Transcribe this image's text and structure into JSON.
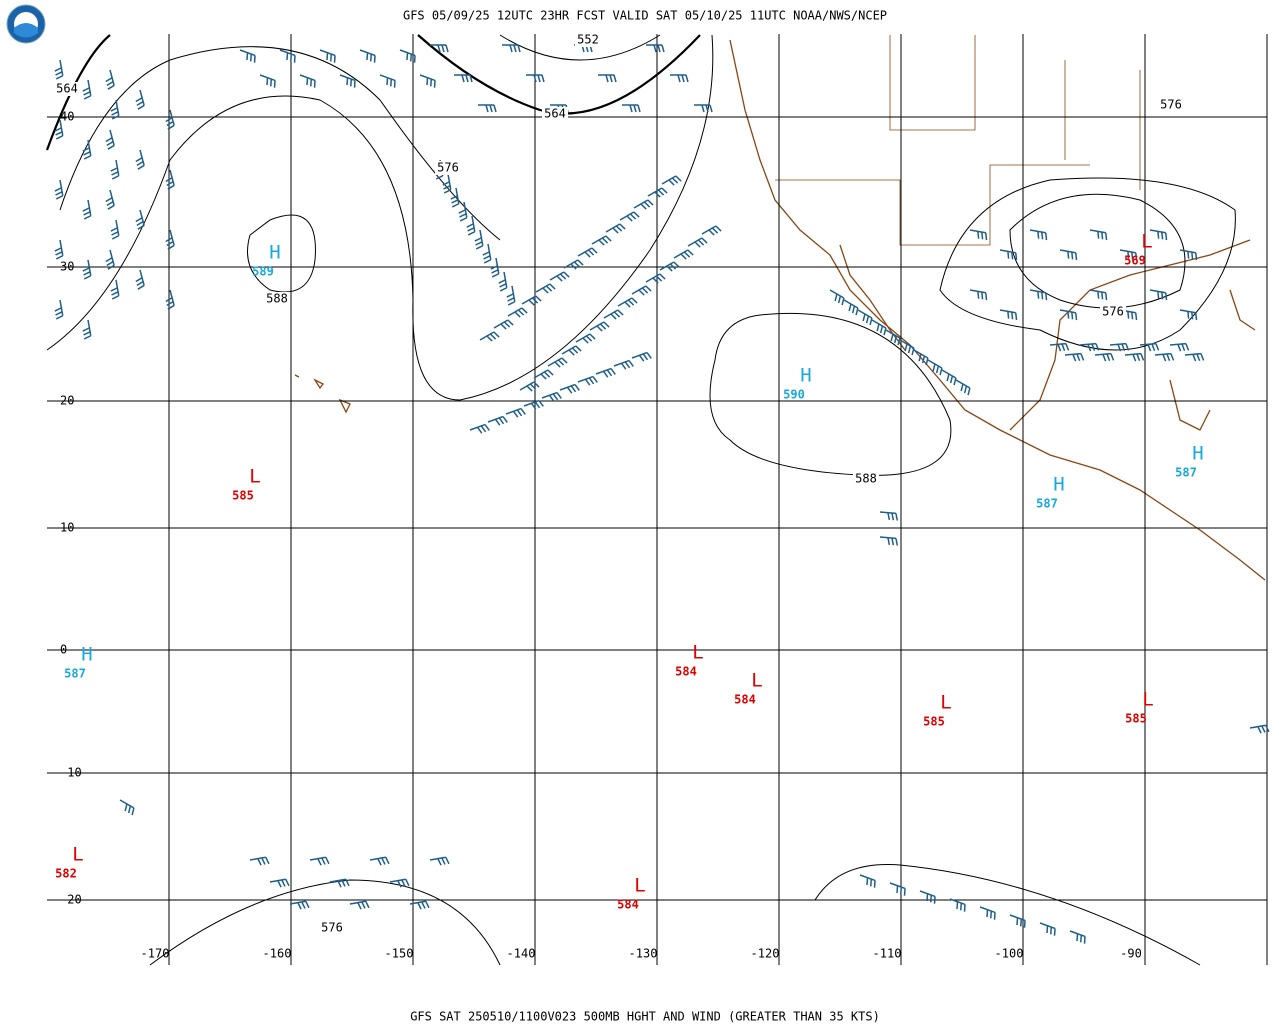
{
  "header": {
    "title": "GFS 05/09/25 12UTC 23HR FCST VALID SAT 05/10/25 11UTC NOAA/NWS/NCEP"
  },
  "footer": {
    "caption": "GFS SAT 250510/1100V023 500MB HGHT AND WIND (GREATER THAN 35 KTS)"
  },
  "latitude_labels": [
    "40",
    "30",
    "20",
    "10",
    "0",
    "-10",
    "-20"
  ],
  "longitude_labels": [
    "-170",
    "-160",
    "-150",
    "-140",
    "-130",
    "-120",
    "-110",
    "-100",
    "-90"
  ],
  "centers": [
    {
      "symbol": "H",
      "value": "589"
    },
    {
      "symbol": "H",
      "value": "590"
    },
    {
      "symbol": "H",
      "value": "587"
    },
    {
      "symbol": "H",
      "value": "587"
    },
    {
      "symbol": "H",
      "value": "587"
    },
    {
      "symbol": "L",
      "value": "585"
    },
    {
      "symbol": "L",
      "value": "569"
    },
    {
      "symbol": "L",
      "value": "584"
    },
    {
      "symbol": "L",
      "value": "584"
    },
    {
      "symbol": "L",
      "value": "585"
    },
    {
      "symbol": "L",
      "value": "585"
    },
    {
      "symbol": "L",
      "value": "582"
    },
    {
      "symbol": "L",
      "value": "584"
    }
  ],
  "contour_labels": [
    "552",
    "564",
    "564",
    "576",
    "588",
    "576",
    "576",
    "588",
    "576"
  ]
}
